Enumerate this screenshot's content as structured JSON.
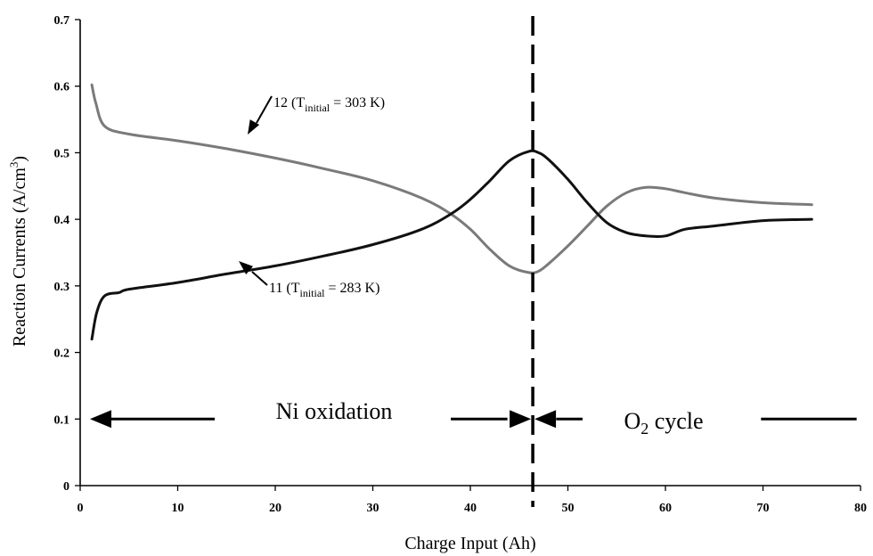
{
  "chart_data": {
    "type": "line",
    "xlabel": "Charge Input (Ah)",
    "ylabel_main": "Reaction Currents (A/cm",
    "ylabel_sup": "3",
    "ylabel_tail": ")",
    "xlim": [
      0,
      80
    ],
    "ylim": [
      0,
      0.7
    ],
    "xticks": [
      0,
      10,
      20,
      30,
      40,
      50,
      60,
      70,
      80
    ],
    "yticks": [
      0,
      0.1,
      0.2,
      0.3,
      0.4,
      0.5,
      0.6,
      0.7
    ],
    "xtick_labels": [
      "0",
      "10",
      "20",
      "30",
      "40",
      "50",
      "60",
      "70",
      "80"
    ],
    "ytick_labels": [
      "0",
      "0.1",
      "0.2",
      "0.3",
      "0.4",
      "0.5",
      "0.6",
      "0.7"
    ],
    "grid": false,
    "series": [
      {
        "color": "#7a7a7a",
        "x": [
          1.2,
          1.6,
          2.5,
          5,
          10,
          15,
          20,
          25,
          30,
          35,
          38,
          40,
          42,
          44,
          46,
          47,
          48,
          50,
          52,
          54,
          56,
          58,
          60,
          62,
          65,
          70,
          75
        ],
        "y": [
          0.602,
          0.575,
          0.54,
          0.528,
          0.518,
          0.506,
          0.492,
          0.476,
          0.458,
          0.432,
          0.408,
          0.385,
          0.355,
          0.33,
          0.32,
          0.322,
          0.333,
          0.36,
          0.39,
          0.42,
          0.44,
          0.448,
          0.446,
          0.44,
          0.432,
          0.425,
          0.422
        ]
      },
      {
        "color": "#111111",
        "x": [
          1.2,
          1.7,
          2.5,
          4,
          5,
          10,
          15,
          20,
          25,
          30,
          35,
          38,
          40,
          42,
          44,
          46,
          47,
          48,
          50,
          52,
          54,
          56,
          58,
          60,
          62,
          65,
          70,
          75
        ],
        "y": [
          0.22,
          0.26,
          0.285,
          0.29,
          0.295,
          0.305,
          0.318,
          0.33,
          0.345,
          0.362,
          0.385,
          0.408,
          0.43,
          0.458,
          0.488,
          0.502,
          0.5,
          0.49,
          0.46,
          0.425,
          0.395,
          0.38,
          0.375,
          0.375,
          0.385,
          0.39,
          0.398,
          0.4
        ]
      }
    ],
    "divider_x": 46.4,
    "annotations": [
      {
        "num": "12 (T",
        "sub": "initial",
        "rest": " = 303 K)"
      },
      {
        "num": "11 (T",
        "sub": "initial",
        "rest": " = 283 K)"
      }
    ],
    "regions": {
      "left_label": "Ni oxidation",
      "right_main": "O",
      "right_sub": "2",
      "right_tail": " cycle"
    }
  }
}
